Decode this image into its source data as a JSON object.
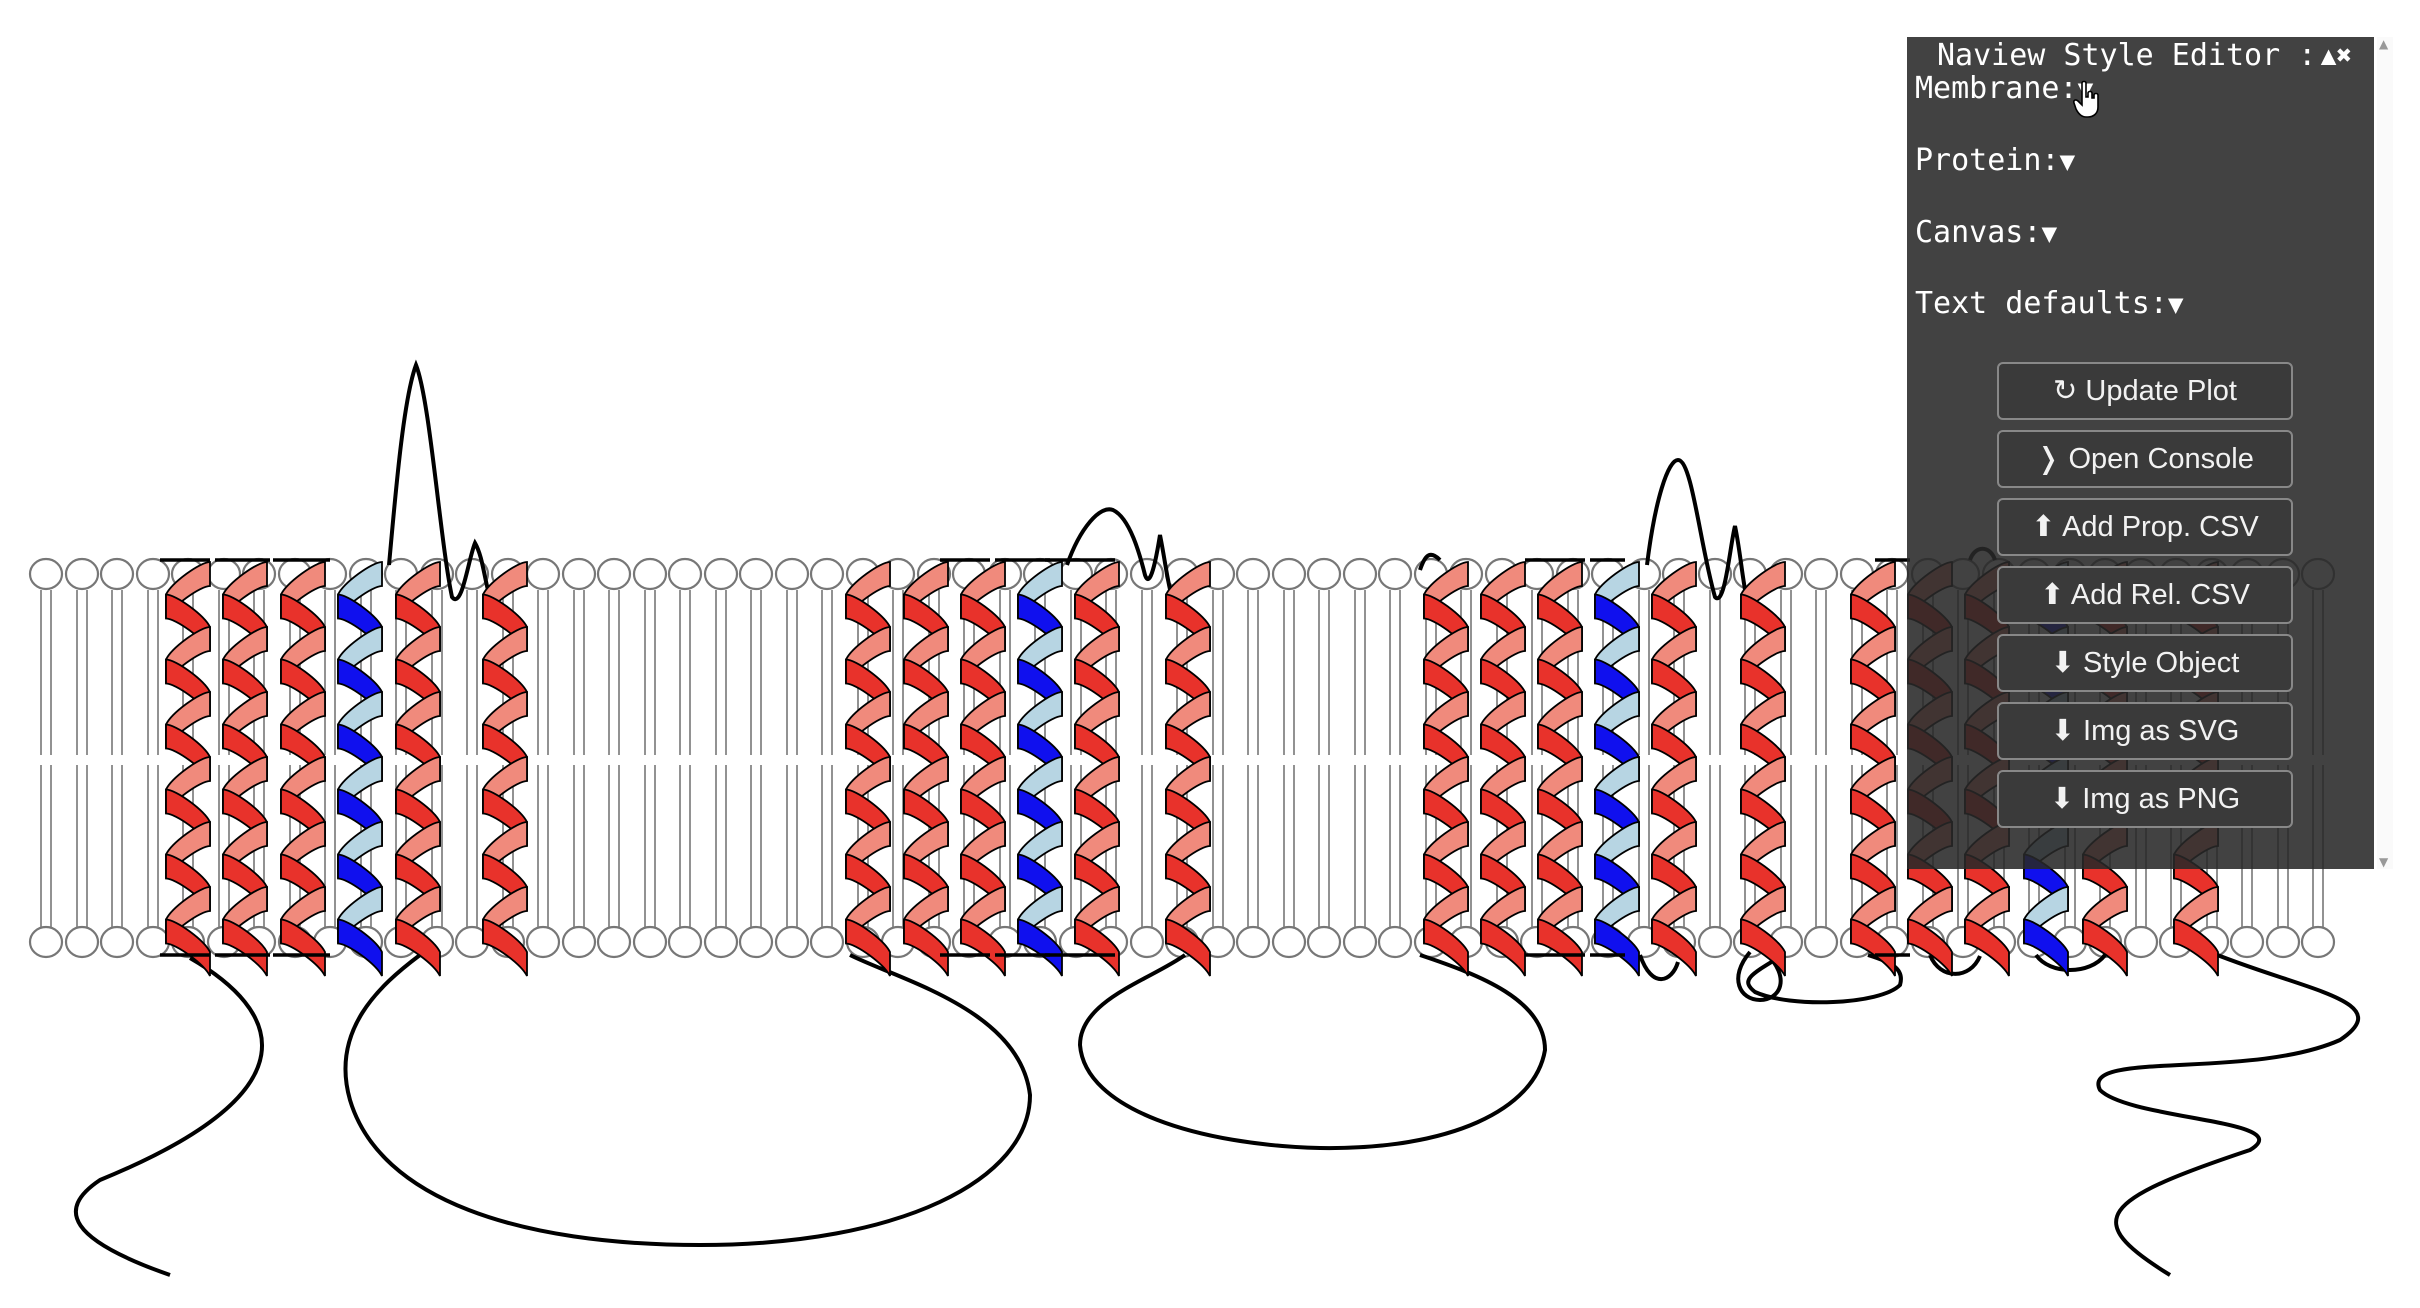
{
  "diagram": {
    "colors": {
      "helix_front": "#e8322b",
      "helix_back": "#f08a7c",
      "helix_highlight_front": "#1010ee",
      "helix_highlight_back": "#b7d5e3",
      "loop": "#000000",
      "lipid": "#777777"
    },
    "helix_groups": [
      {
        "helices": [
          "red",
          "red",
          "red",
          "blue",
          "red",
          "red"
        ]
      },
      {
        "helices": [
          "red",
          "red",
          "red",
          "blue",
          "red",
          "red"
        ]
      },
      {
        "helices": [
          "red",
          "red",
          "red",
          "blue",
          "red",
          "red",
          "red",
          "red",
          "red",
          "blue",
          "red",
          "red"
        ]
      }
    ]
  },
  "editor": {
    "title": "Naview Style Editor :",
    "collapse_icon": "▲",
    "close_icon": "✖",
    "sections": [
      {
        "label": "Membrane:",
        "arrow": "▼"
      },
      {
        "label": "Protein:",
        "arrow": "▼"
      },
      {
        "label": "Canvas:",
        "arrow": "▼"
      },
      {
        "label": "Text defaults:",
        "arrow": "▼"
      }
    ],
    "buttons": [
      {
        "icon": "↻",
        "label": "Update Plot"
      },
      {
        "icon": "❭",
        "label": "Open Console"
      },
      {
        "icon": "⬆",
        "label": "Add Prop. CSV"
      },
      {
        "icon": "⬆",
        "label": "Add Rel. CSV"
      },
      {
        "icon": "⬇",
        "label": "Style Object"
      },
      {
        "icon": "⬇",
        "label": "Img as SVG"
      },
      {
        "icon": "⬇",
        "label": "Img as PNG"
      }
    ]
  }
}
